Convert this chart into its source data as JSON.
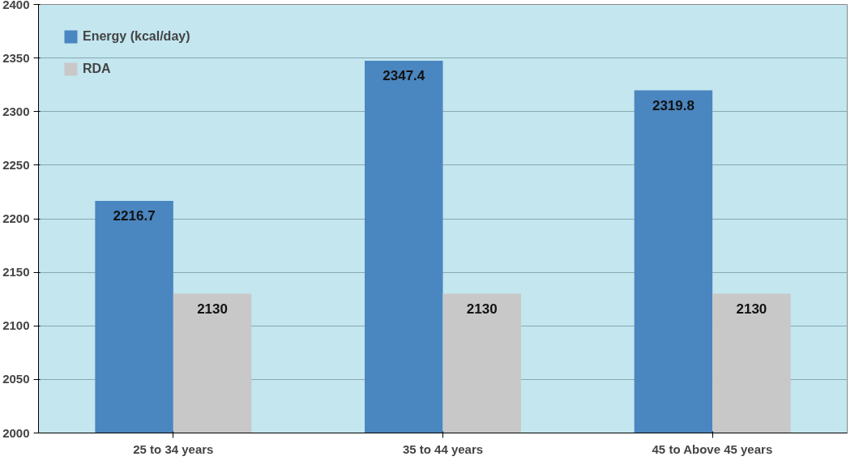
{
  "chart_data": {
    "type": "bar",
    "categories": [
      "25 to 34 years",
      "35 to 44 years",
      "45 to Above 45 years"
    ],
    "series": [
      {
        "name": "Energy (kcal/day)",
        "color": "#4a86c0",
        "values": [
          2216.7,
          2347.4,
          2319.8
        ]
      },
      {
        "name": "RDA",
        "color": "#c8c8c8",
        "values": [
          2130,
          2130,
          2130
        ]
      }
    ],
    "ylim": [
      2000,
      2400
    ],
    "yticks": [
      2000,
      2050,
      2100,
      2150,
      2200,
      2250,
      2300,
      2350,
      2400
    ],
    "grid": "y",
    "legend": "top left",
    "data_labels": true
  }
}
